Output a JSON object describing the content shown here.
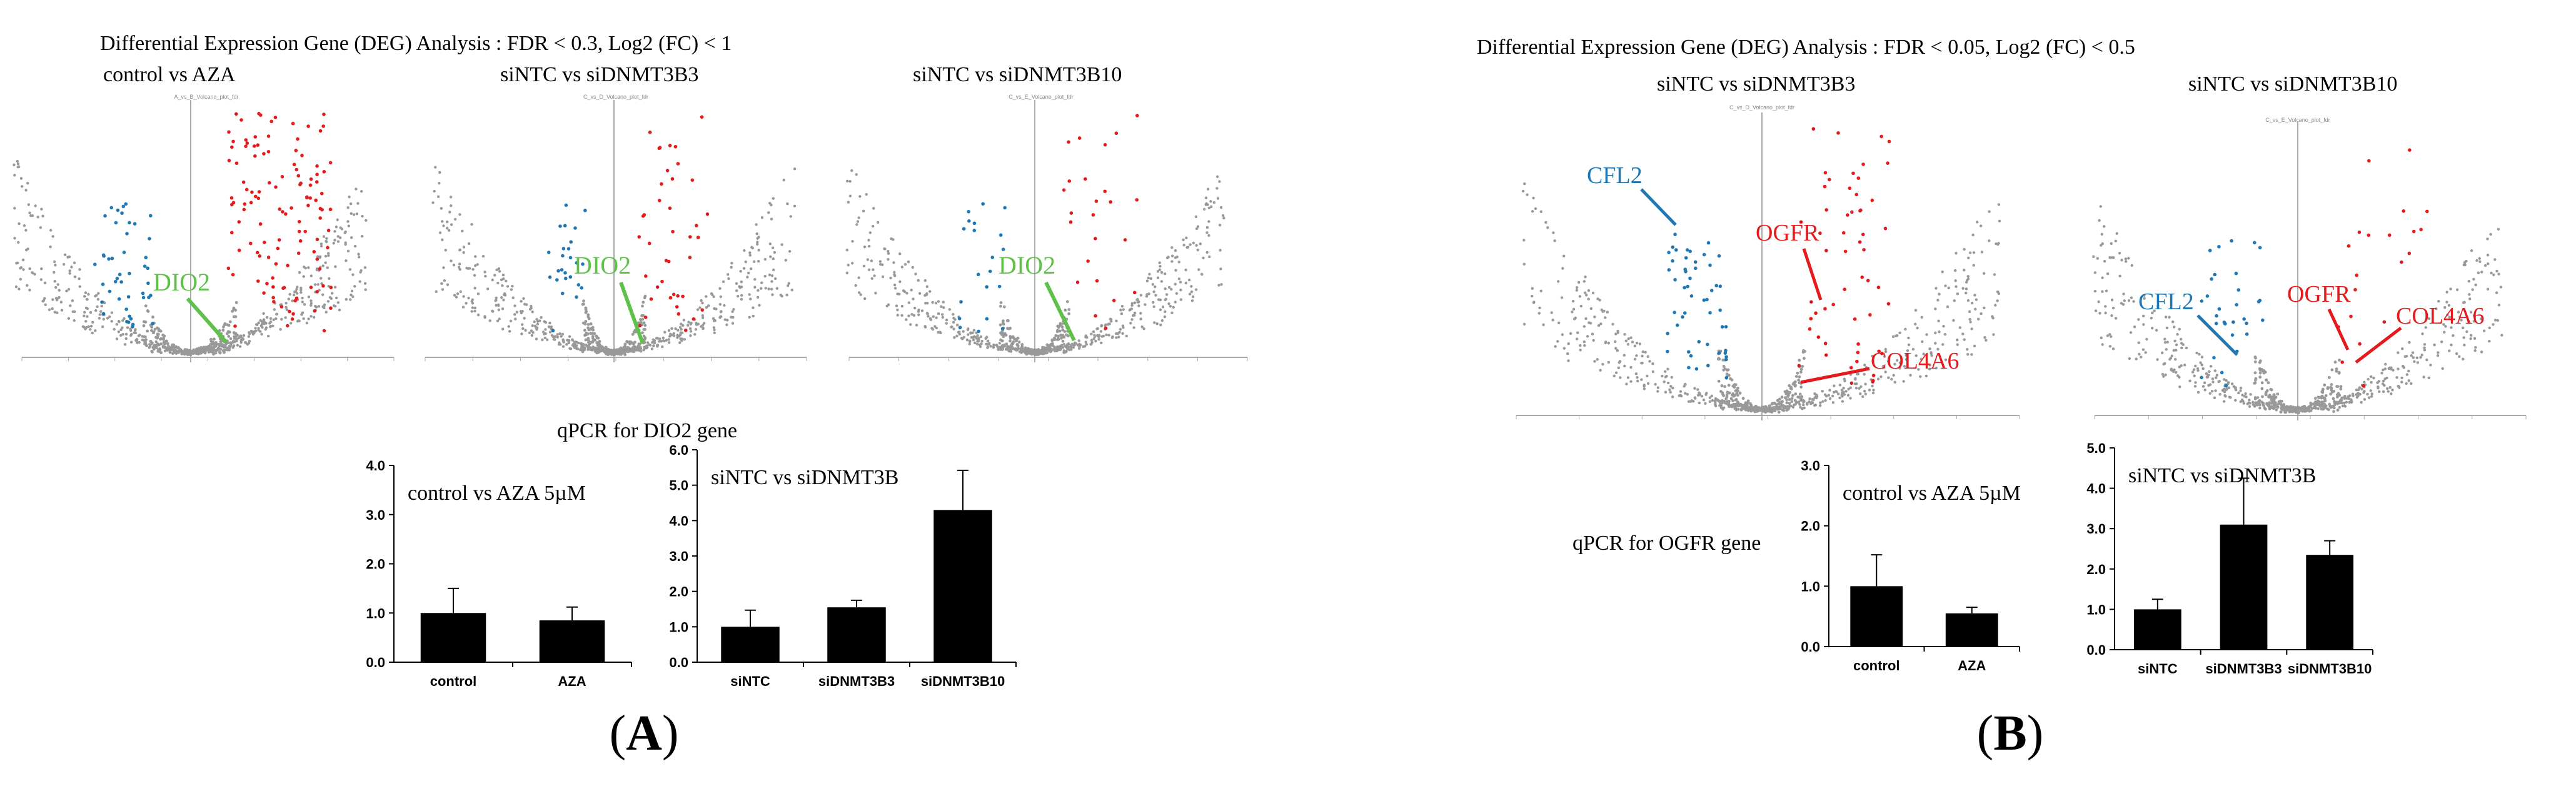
{
  "panels": [
    {
      "label": "A",
      "title": "Differential Expression Gene (DEG) Analysis : FDR < 0.3, Log2 (FC) < 1",
      "volcanoes": [
        {
          "subtitle": "control vs AZA",
          "inner_title": "A_vs_B_Volcano_plot_fdr",
          "annotation": "DIO2"
        },
        {
          "subtitle": "siNTC vs siDNMT3B3",
          "inner_title": "C_vs_D_Volcano_plot_fdr",
          "annotation": "DIO2"
        },
        {
          "subtitle": "siNTC vs siDNMT3B10",
          "inner_title": "C_vs_E_Volcano_plot_fdr",
          "annotation": "DIO2"
        }
      ],
      "qpcr_title": "qPCR for DIO2 gene"
    },
    {
      "label": "B",
      "title": "Differential Expression Gene (DEG) Analysis : FDR < 0.05, Log2 (FC) < 0.5",
      "volcanoes": [
        {
          "subtitle": "siNTC vs siDNMT3B3",
          "inner_title": "C_vs_D_Volcano_plot_fdr",
          "annotations": [
            "CFL2",
            "OGFR",
            "COL4A6"
          ]
        },
        {
          "subtitle": "siNTC vs siDNMT3B10",
          "inner_title": "C_vs_E_Volcano_plot_fdr",
          "annotations": [
            "CFL2",
            "OGFR",
            "COL4A6"
          ]
        }
      ],
      "qpcr_title": "qPCR for OGFR gene"
    }
  ],
  "colors": {
    "up": "#e41a1c",
    "down": "#1f78b4",
    "ns": "#999999",
    "dio2": "#5fc14a",
    "bar": "#000000"
  },
  "chart_data": [
    {
      "type": "bar",
      "title": "control vs AZA 5µM",
      "categories": [
        "control",
        "AZA"
      ],
      "values": [
        1.0,
        0.85
      ],
      "errors": [
        0.5,
        0.27
      ],
      "ylim": [
        0,
        4
      ],
      "yticks": [
        "0.0",
        "1.0",
        "2.0",
        "3.0",
        "4.0"
      ]
    },
    {
      "type": "bar",
      "title": "siNTC vs siDNMT3B",
      "categories": [
        "siNTC",
        "siDNMT3B3",
        "siDNMT3B10"
      ],
      "values": [
        1.0,
        1.55,
        4.3
      ],
      "errors": [
        0.47,
        0.2,
        1.12
      ],
      "ylim": [
        0,
        6
      ],
      "yticks": [
        "0.0",
        "1.0",
        "2.0",
        "3.0",
        "4.0",
        "5.0",
        "6.0"
      ]
    },
    {
      "type": "bar",
      "title": "control vs AZA 5µM",
      "categories": [
        "control",
        "AZA"
      ],
      "values": [
        1.0,
        0.55
      ],
      "errors": [
        0.52,
        0.1
      ],
      "ylim": [
        0,
        3
      ],
      "yticks": [
        "0.0",
        "1.0",
        "2.0",
        "3.0"
      ]
    },
    {
      "type": "bar",
      "title": "siNTC vs siDNMT3B",
      "categories": [
        "siNTC",
        "siDNMT3B3",
        "siDNMT3B10"
      ],
      "values": [
        1.0,
        3.1,
        2.35
      ],
      "errors": [
        0.25,
        1.15,
        0.35
      ],
      "ylim": [
        0,
        5
      ],
      "yticks": [
        "0.0",
        "1.0",
        "2.0",
        "3.0",
        "4.0",
        "5.0"
      ]
    }
  ]
}
